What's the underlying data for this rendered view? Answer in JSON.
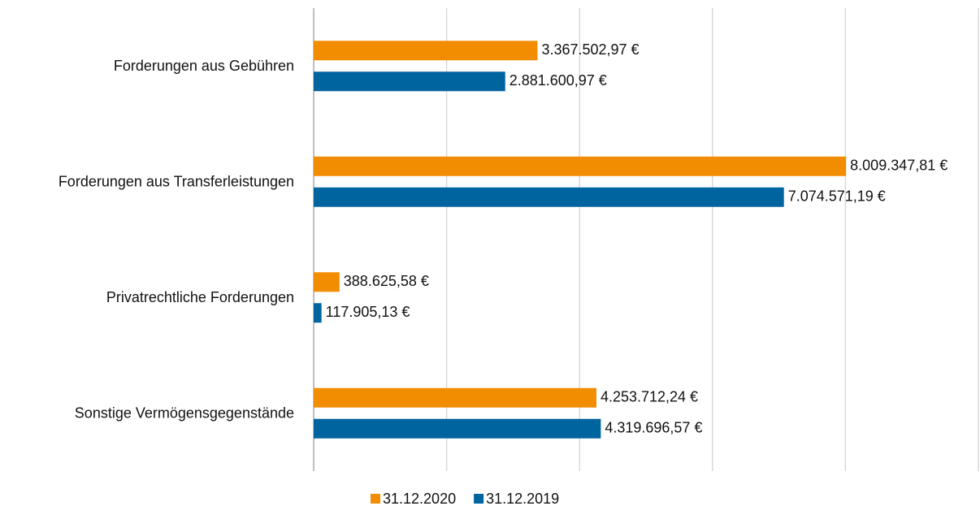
{
  "chart_data": {
    "type": "barh",
    "categories": [
      "Forderungen aus Gebühren",
      "Forderungen aus Transferleistungen",
      "Privatrechtliche Forderungen",
      "Sonstige Vermögensgegenstände"
    ],
    "series": [
      {
        "name": "31.12.2020",
        "color": "#f28c00",
        "values": [
          3367502.97,
          8009347.81,
          388625.58,
          4253712.24
        ],
        "value_labels": [
          "3.367.502,97 €",
          "8.009.347,81 €",
          "388.625,58 €",
          "4.253.712,24 €"
        ]
      },
      {
        "name": "31.12.2019",
        "color": "#00649f",
        "values": [
          2881600.97,
          7074571.19,
          117905.13,
          4319696.57
        ],
        "value_labels": [
          "2.881.600,97 €",
          "7.074.571,19 €",
          "117.905,13 €",
          "4.319.696,57 €"
        ]
      }
    ],
    "xlim": [
      0,
      10000000
    ],
    "xticks": [
      0,
      2000000,
      4000000,
      6000000,
      8000000,
      10000000
    ],
    "grid": true
  }
}
